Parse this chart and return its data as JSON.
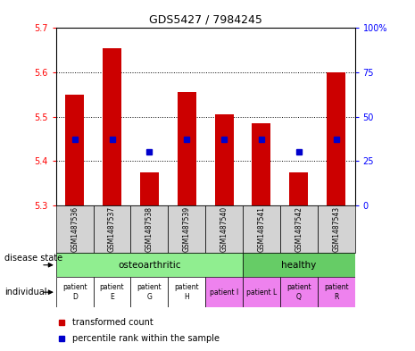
{
  "title": "GDS5427 / 7984245",
  "samples": [
    "GSM1487536",
    "GSM1487537",
    "GSM1487538",
    "GSM1487539",
    "GSM1487540",
    "GSM1487541",
    "GSM1487542",
    "GSM1487543"
  ],
  "red_values": [
    5.55,
    5.655,
    5.375,
    5.555,
    5.505,
    5.485,
    5.375,
    5.6
  ],
  "blue_percentile": [
    37,
    37,
    30,
    37,
    37,
    37,
    30,
    37
  ],
  "y_min": 5.3,
  "y_max": 5.7,
  "y_ticks": [
    5.3,
    5.4,
    5.5,
    5.6,
    5.7
  ],
  "y2_ticks": [
    0,
    25,
    50,
    75,
    100
  ],
  "y2_labels": [
    "0",
    "25",
    "50",
    "75",
    "100%"
  ],
  "disease_state": {
    "osteoarthritic": [
      0,
      1,
      2,
      3,
      4
    ],
    "healthy": [
      5,
      6,
      7
    ]
  },
  "disease_colors": {
    "osteoarthritic": "#90EE90",
    "healthy": "#66CC66"
  },
  "individual_labels": [
    "patient\nD",
    "patient\nE",
    "patient\nG",
    "patient\nH",
    "patient I",
    "patient L",
    "patient\nQ",
    "patient\nR"
  ],
  "individual_colors": [
    "#ffffff",
    "#ffffff",
    "#ffffff",
    "#ffffff",
    "#EE82EE",
    "#EE82EE",
    "#EE82EE",
    "#EE82EE"
  ],
  "bar_color": "#CC0000",
  "dot_color": "#0000CC",
  "bar_bottom": 5.3,
  "sample_bg": "#D3D3D3"
}
